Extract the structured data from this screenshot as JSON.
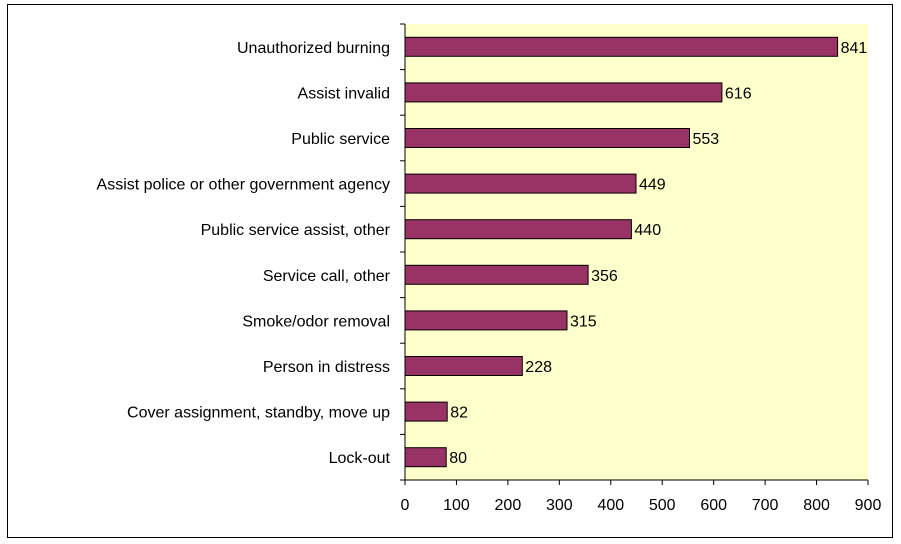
{
  "chart_data": {
    "type": "bar",
    "orientation": "horizontal",
    "title": "",
    "xlabel": "",
    "ylabel": "",
    "categories": [
      "Unauthorized burning",
      "Assist invalid",
      "Public service",
      "Assist police or other government agency",
      "Public service assist, other",
      "Service call, other",
      "Smoke/odor removal",
      "Person in distress",
      "Cover assignment, standby, move up",
      "Lock-out"
    ],
    "values": [
      841,
      616,
      553,
      449,
      440,
      356,
      315,
      228,
      82,
      80
    ],
    "value_labels": [
      "841",
      "616",
      "553",
      "449",
      "440",
      "356",
      "315",
      "228",
      "82",
      "80"
    ],
    "xlim": [
      0,
      900
    ],
    "x_ticks": [
      "0",
      "100",
      "200",
      "300",
      "400",
      "500",
      "600",
      "700",
      "800",
      "900"
    ],
    "grid": false,
    "legend": "none",
    "colors": {
      "bar_fill": "#993366",
      "bar_stroke": "#000000",
      "plot_background": "#FFFFCC",
      "axis": "#000000"
    }
  }
}
